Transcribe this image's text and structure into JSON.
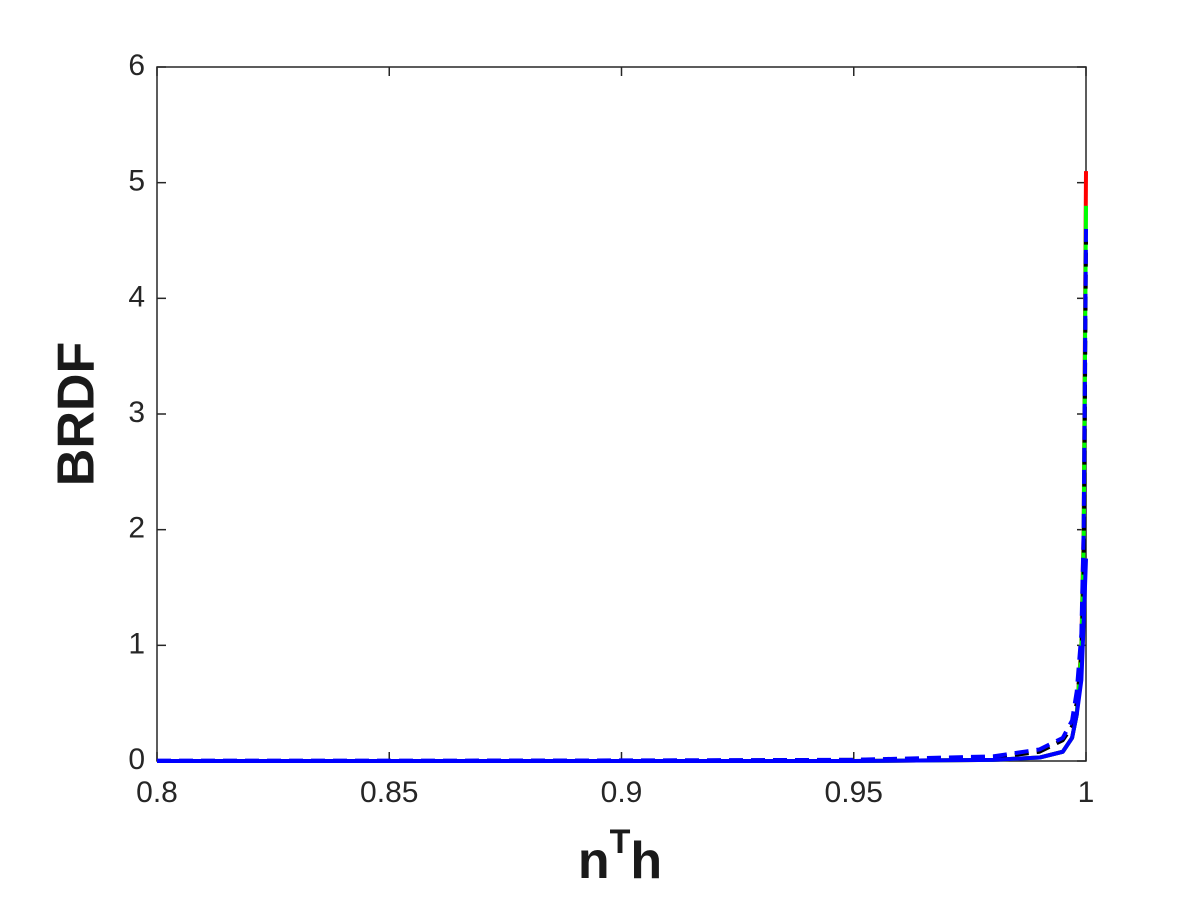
{
  "chart_data": {
    "type": "line",
    "xlabel": {
      "main": "n",
      "superscript": "T",
      "tail": "h"
    },
    "ylabel": "BRDF",
    "x": [
      0.8,
      0.85,
      0.9,
      0.95,
      0.98,
      0.99,
      0.995,
      0.997,
      0.998,
      0.999,
      0.9995,
      1
    ],
    "series": [
      {
        "color": "#ff0000",
        "dash": false,
        "values": [
          0,
          0,
          0,
          0,
          0.01,
          0.03,
          0.08,
          0.2,
          0.4,
          1.0,
          2.0,
          5.1
        ]
      },
      {
        "color": "#00ff00",
        "dash": false,
        "values": [
          0,
          0,
          0,
          0,
          0.01,
          0.03,
          0.08,
          0.2,
          0.4,
          0.95,
          1.9,
          4.8
        ]
      },
      {
        "color": "#000000",
        "dash": true,
        "values": [
          0,
          0,
          0,
          0.01,
          0.03,
          0.08,
          0.18,
          0.3,
          0.5,
          0.9,
          1.6,
          4.5
        ]
      },
      {
        "color": "#0000ff",
        "dash": true,
        "values": [
          0.003,
          0.003,
          0.005,
          0.01,
          0.04,
          0.1,
          0.2,
          0.35,
          0.6,
          1.1,
          2.0,
          4.6
        ]
      },
      {
        "color": "#0000ff",
        "dash": false,
        "values": [
          0,
          0,
          0,
          0,
          0.01,
          0.03,
          0.08,
          0.2,
          0.4,
          0.7,
          1.2,
          1.75
        ]
      }
    ],
    "xlim": [
      0.8,
      1
    ],
    "ylim": [
      0,
      6
    ],
    "xticks": [
      0.8,
      0.85,
      0.9,
      0.95,
      1
    ],
    "yticks": [
      0,
      1,
      2,
      3,
      4,
      5,
      6
    ],
    "grid": false
  }
}
